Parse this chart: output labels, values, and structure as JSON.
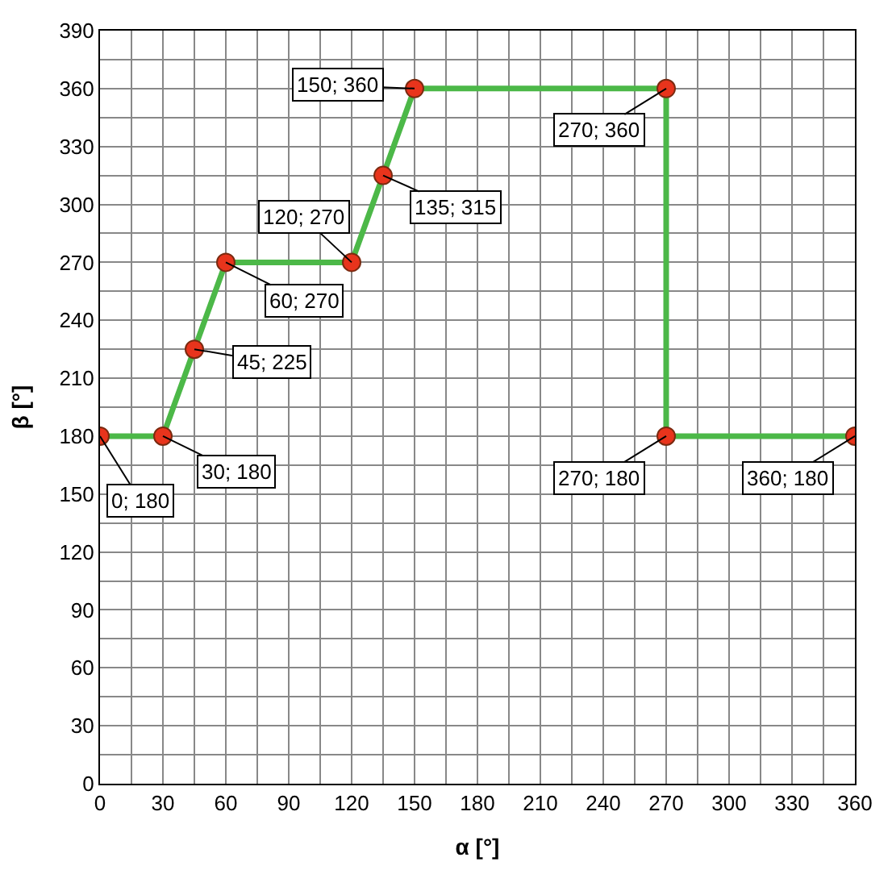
{
  "chart_data": {
    "type": "line",
    "xlabel": "α [°]",
    "ylabel": "β [°]",
    "x": [
      0,
      30,
      45,
      60,
      120,
      135,
      150,
      270,
      270,
      360
    ],
    "series": [
      {
        "color": "#4cb848",
        "values": [
          180,
          180,
          225,
          270,
          270,
          315,
          360,
          360,
          180,
          180
        ],
        "value_labels": [
          "0; 180",
          "30; 180",
          "45; 225",
          "60; 270",
          "120; 270",
          "135; 315",
          "150; 360",
          "270; 360",
          "270; 180",
          "360; 180"
        ],
        "colors": [
          "#e8341c",
          "#e8341c",
          "#e8341c",
          "#e8341c",
          "#e8341c",
          "#e8341c",
          "#e8341c",
          "#e8341c",
          "#e8341c",
          "#e8341c"
        ]
      }
    ],
    "marker": "circle",
    "line_style": "solid",
    "xlim": [
      0,
      360
    ],
    "xticks": [
      0,
      30,
      60,
      90,
      120,
      150,
      180,
      210,
      240,
      270,
      300,
      330,
      360
    ],
    "ylim": [
      0,
      390
    ],
    "yticks": [
      0,
      30,
      60,
      90,
      120,
      150,
      180,
      210,
      240,
      270,
      300,
      330,
      360,
      390
    ],
    "grid": true
  }
}
